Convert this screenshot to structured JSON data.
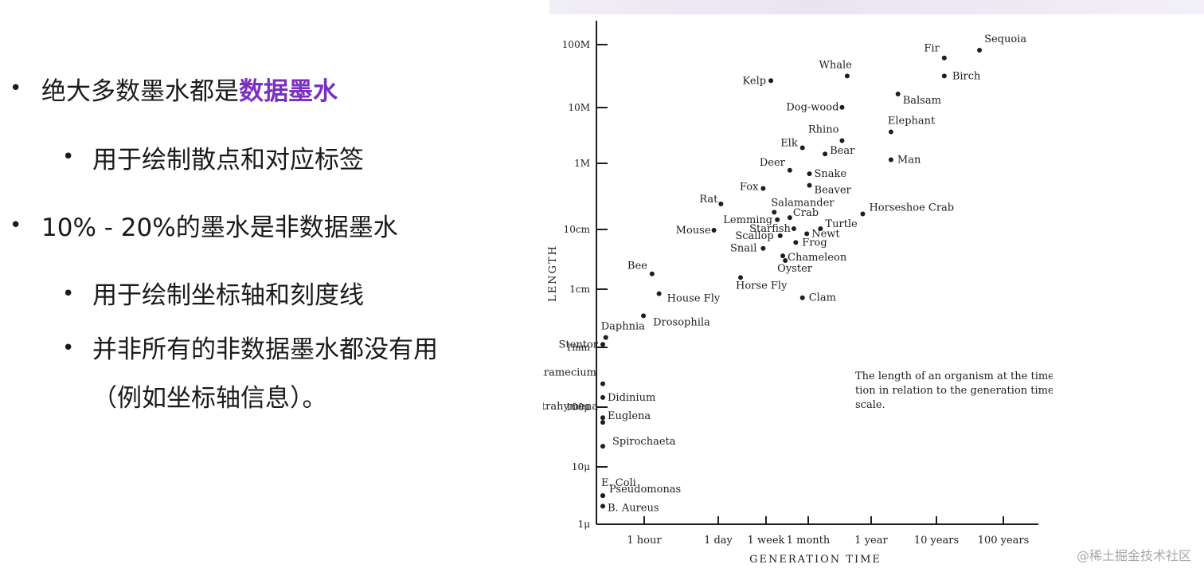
{
  "bullets": {
    "item1": {
      "text": "绝大多数墨水都是",
      "highlight": "数据墨水"
    },
    "item1_sub": "用于绘制散点和对应标签",
    "item2": "10% - 20%的墨水是非数据墨水",
    "item2_sub1": "用于绘制坐标轴和刻度线",
    "item2_sub2_line1": "并非所有的非数据墨水都没有用",
    "item2_sub2_line2": "（例如坐标轴信息）。"
  },
  "watermark": "@稀土掘金技术社区",
  "colors": {
    "highlight": "#7a2fc2",
    "ink": "#1e1e1e"
  },
  "chart_data": {
    "type": "scatter",
    "title": "",
    "xlabel": "GENERATION TIME",
    "ylabel": "LENGTH",
    "xscale": "log",
    "yscale": "log",
    "x_tick_labels": [
      "1 hour",
      "1 day",
      "1 week",
      "1 month",
      "1 year",
      "10 years",
      "100 years"
    ],
    "y_tick_labels": [
      "1μ",
      "10μ",
      "100μ",
      "1mm",
      "1cm",
      "10cm",
      "1M",
      "10M",
      "100M"
    ],
    "x_range": [
      "20 minutes",
      "1000 years"
    ],
    "y_range": [
      "1μ",
      "100M"
    ],
    "grid": false,
    "caption": [
      "The length of an organism at the time of reproduc-",
      "tion in relation to the generation time, plotted on a logarithmic",
      "scale."
    ],
    "points": [
      {
        "name": "Sequoia",
        "x": 250,
        "y": 85
      },
      {
        "name": "Fir",
        "x": 100,
        "y": 60
      },
      {
        "name": "Birch",
        "x": 100,
        "y": 30
      },
      {
        "name": "Whale",
        "x": 8,
        "y": 30
      },
      {
        "name": "Kelp",
        "x": 1.1,
        "y": 25
      },
      {
        "name": "Balsam",
        "x": 30,
        "y": 15
      },
      {
        "name": "Dog-wood",
        "x": 7,
        "y": 9
      },
      {
        "name": "Elephant",
        "x": 25,
        "y": 3.5
      },
      {
        "name": "Rhino",
        "x": 7,
        "y": 2.5
      },
      {
        "name": "Elk",
        "x": 2.5,
        "y": 1.9
      },
      {
        "name": "Bear",
        "x": 4.5,
        "y": 1.5
      },
      {
        "name": "Man",
        "x": 25,
        "y": 1.2
      },
      {
        "name": "Deer",
        "x": 1.8,
        "y": 0.8
      },
      {
        "name": "Snake",
        "x": 3,
        "y": 0.7
      },
      {
        "name": "Fox",
        "x": 0.9,
        "y": 0.4
      },
      {
        "name": "Beaver",
        "x": 3,
        "y": 0.45
      },
      {
        "name": "Rat",
        "x": 0.3,
        "y": 0.22
      },
      {
        "name": "Salamander",
        "x": 1.2,
        "y": 0.16
      },
      {
        "name": "Horseshoe Crab",
        "x": 12,
        "y": 0.15
      },
      {
        "name": "Crab",
        "x": 1.8,
        "y": 0.13
      },
      {
        "name": "Lemming",
        "x": 1.3,
        "y": 0.12
      },
      {
        "name": "Starfish",
        "x": 2,
        "y": 0.085
      },
      {
        "name": "Turtle",
        "x": 4,
        "y": 0.085
      },
      {
        "name": "Mouse",
        "x": 0.25,
        "y": 0.08
      },
      {
        "name": "Newt",
        "x": 2.8,
        "y": 0.07
      },
      {
        "name": "Scallop",
        "x": 1.4,
        "y": 0.065
      },
      {
        "name": "Frog",
        "x": 2.1,
        "y": 0.05
      },
      {
        "name": "Snail",
        "x": 0.9,
        "y": 0.04
      },
      {
        "name": "Chameleon",
        "x": 1.5,
        "y": 0.03
      },
      {
        "name": "Oyster",
        "x": 1.6,
        "y": 0.025
      },
      {
        "name": "Bee",
        "x": 0.05,
        "y": 0.015
      },
      {
        "name": "Horse Fly",
        "x": 0.5,
        "y": 0.013
      },
      {
        "name": "House Fly",
        "x": 0.06,
        "y": 0.007
      },
      {
        "name": "Clam",
        "x": 2.5,
        "y": 0.006
      },
      {
        "name": "Drosophila",
        "x": 0.04,
        "y": 0.003
      },
      {
        "name": "Daphnia",
        "x": 0.015,
        "y": 0.0013
      },
      {
        "name": "Stentor",
        "x": 0.008,
        "y": 0.001
      },
      {
        "name": "Paramecium",
        "x": 0.003,
        "y": 0.00022
      },
      {
        "name": "Didinium",
        "x": 0.003,
        "y": 0.00013
      },
      {
        "name": "Tetrahymena",
        "x": 0.001,
        "y": 6e-05
      },
      {
        "name": "Euglena",
        "x": 0.003,
        "y": 5e-05
      },
      {
        "name": "Spirochaeta",
        "x": 0.004,
        "y": 2e-05
      },
      {
        "name": "E. Coli",
        "x": 1e-05,
        "y": 3e-06
      },
      {
        "name": "Pseudomonas",
        "x": 4e-05,
        "y": 3e-06
      },
      {
        "name": "B. Aureus",
        "x": 2e-05,
        "y": 2e-06
      }
    ]
  }
}
